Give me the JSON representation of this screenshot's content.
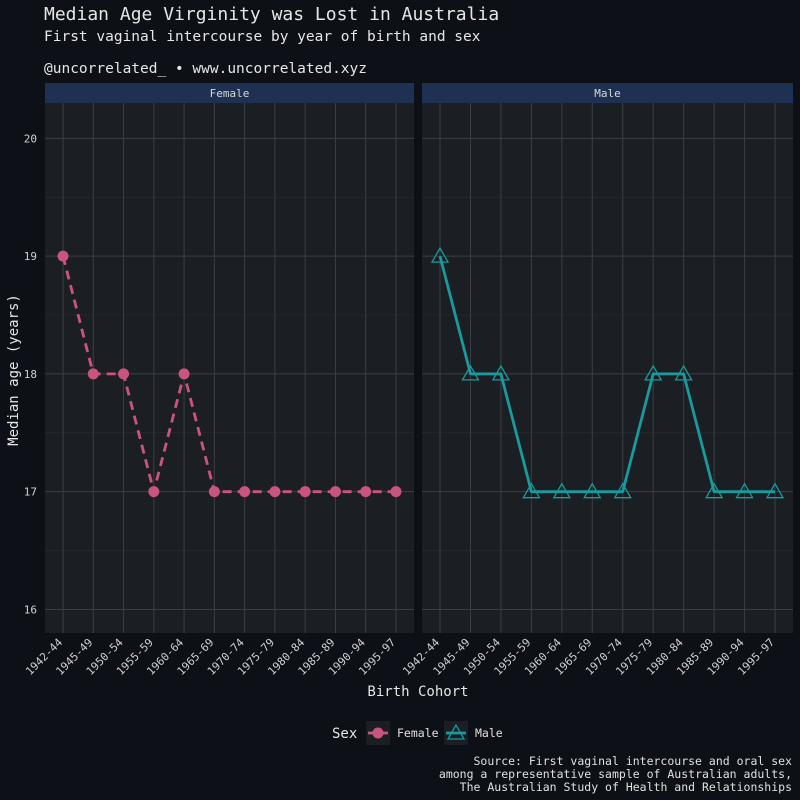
{
  "chart_data": {
    "type": "line",
    "title": "Median Age Virginity was Lost in Australia",
    "subtitle": "First vaginal intercourse by year of birth and sex",
    "handle": "@uncorrelated_ • www.uncorrelated.xyz",
    "xlabel": "Birth Cohort",
    "ylabel": "Median age (years)",
    "categories": [
      "1942-44",
      "1945-49",
      "1950-54",
      "1955-59",
      "1960-64",
      "1965-69",
      "1970-74",
      "1975-79",
      "1980-84",
      "1985-89",
      "1990-94",
      "1995-97"
    ],
    "ylim": [
      15.8,
      20.3
    ],
    "yticks": [
      16,
      17,
      18,
      19,
      20
    ],
    "yticks_labels": [
      "16",
      "17",
      "18",
      "19",
      "20"
    ],
    "series": [
      {
        "name": "Female",
        "color": "#c9557f",
        "line": "dashed",
        "marker": "circle",
        "values": [
          19,
          18,
          18,
          17,
          18,
          17,
          17,
          17,
          17,
          17,
          17,
          17
        ]
      },
      {
        "name": "Male",
        "color": "#1a9a9c",
        "line": "solid",
        "marker": "triangle",
        "values": [
          19,
          18,
          18,
          17,
          17,
          17,
          17,
          18,
          18,
          17,
          17,
          17
        ]
      }
    ],
    "facets": [
      "Female",
      "Male"
    ],
    "legend": {
      "title": "Sex",
      "position": "bottom"
    },
    "caption": [
      "Source: First vaginal intercourse and oral sex",
      "among a representative sample of Australian adults,",
      "The Australian Study of Health and Relationships"
    ]
  },
  "colors": {
    "background": "#0d1117",
    "panel": "#1b1f24",
    "strip": "#1e3152",
    "grid": "#3a3f46"
  }
}
